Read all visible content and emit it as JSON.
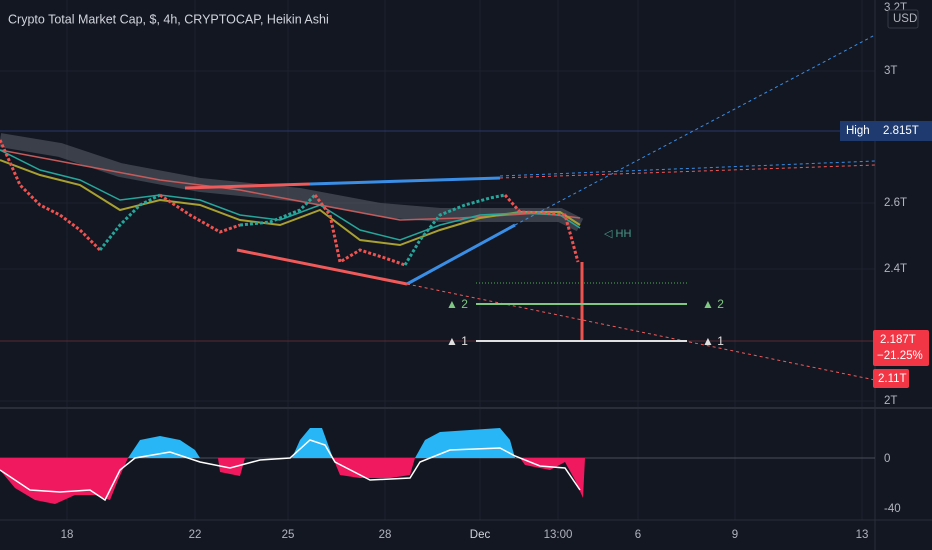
{
  "header": {
    "title": "Crypto Total Market Cap, $, 4h, CRYPTOCAP, Heikin Ashi"
  },
  "price_axis": {
    "labels": [
      "3.2T",
      "3T",
      "2.6T",
      "2.4T",
      "2T"
    ],
    "currency": "USD"
  },
  "tags": {
    "high_label": "High",
    "high_value": "2.815T",
    "last_price": "2.187T",
    "change": "−21.25%",
    "target": "2.11T"
  },
  "indicator_axis": {
    "labels": [
      "0",
      "-40"
    ]
  },
  "time_axis": {
    "labels": [
      "18",
      "22",
      "25",
      "28",
      "Dec",
      "13:00",
      "6",
      "9",
      "13"
    ]
  },
  "annotations": {
    "level_2": [
      "▲ 2",
      "▲ 2"
    ],
    "level_1": [
      "▲ 1",
      "▲ 1"
    ],
    "marker": "◁ HH"
  }
}
